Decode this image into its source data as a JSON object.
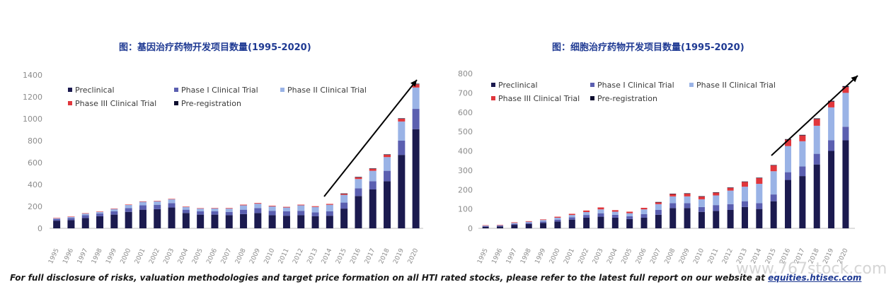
{
  "charts": {
    "left_title": "图：基因治疗药物开发项目数量(1995-2020)",
    "right_title": "图：细胞治疗药物开发项目数量(1995-2020)"
  },
  "footer": {
    "text": "For full disclosure of risks, valuation methodologies and target price formation on all HTI rated stocks, please refer to the latest full report on our website at ",
    "link": "equities.htisec.com"
  },
  "watermark": "www.767stock.com",
  "colors": {
    "preclinical": "#1b1a4f",
    "phase1": "#5b5fb0",
    "phase2": "#9ab3e6",
    "phase3": "#e0363c",
    "prereg": "#0d0d2e",
    "arrow": "#000000"
  },
  "chart_data": [
    {
      "type": "bar",
      "stacked": true,
      "title": "图：基因治疗药物开发项目数量(1995-2020)",
      "categories": [
        "1995",
        "1996",
        "1997",
        "1998",
        "1999",
        "2000",
        "2001",
        "2002",
        "2003",
        "2004",
        "2005",
        "2006",
        "2007",
        "2008",
        "2009",
        "2010",
        "2011",
        "2012",
        "2013",
        "2014",
        "2015",
        "2016",
        "2017",
        "2018",
        "2019",
        "2020"
      ],
      "ylim": [
        0,
        1400
      ],
      "yticks": [
        0,
        200,
        400,
        600,
        800,
        1000,
        1200,
        1400
      ],
      "grid": false,
      "legend_position": "top-left",
      "trend_arrow": true,
      "series": [
        {
          "name": "Preclinical",
          "key": "preclinical",
          "values": [
            70,
            75,
            95,
            110,
            125,
            150,
            170,
            175,
            190,
            140,
            125,
            125,
            120,
            130,
            140,
            120,
            115,
            120,
            110,
            115,
            180,
            295,
            355,
            430,
            670,
            905
          ]
        },
        {
          "name": "Phase I Clinical Trial",
          "key": "phase1",
          "values": [
            15,
            20,
            25,
            25,
            30,
            35,
            40,
            40,
            40,
            30,
            30,
            30,
            30,
            40,
            45,
            40,
            40,
            40,
            35,
            40,
            55,
            70,
            75,
            95,
            130,
            185
          ]
        },
        {
          "name": "Phase II Clinical Trial",
          "key": "phase2",
          "values": [
            8,
            10,
            15,
            15,
            22,
            28,
            32,
            32,
            35,
            25,
            25,
            27,
            30,
            40,
            40,
            40,
            35,
            50,
            50,
            60,
            70,
            85,
            95,
            125,
            175,
            195
          ]
        },
        {
          "name": "Phase III Clinical Trial",
          "key": "phase3",
          "values": [
            2,
            2,
            3,
            3,
            3,
            4,
            4,
            4,
            4,
            4,
            4,
            4,
            5,
            6,
            6,
            6,
            6,
            6,
            7,
            8,
            12,
            17,
            20,
            22,
            25,
            30
          ]
        },
        {
          "name": "Pre-registration",
          "key": "prereg",
          "values": [
            0,
            0,
            0,
            0,
            0,
            0,
            0,
            0,
            0,
            0,
            0,
            0,
            0,
            0,
            0,
            0,
            0,
            0,
            0,
            0,
            1,
            2,
            2,
            3,
            4,
            5
          ]
        }
      ]
    },
    {
      "type": "bar",
      "stacked": true,
      "title": "图：细胞治疗药物开发项目数量(1995-2020)",
      "categories": [
        "1995",
        "1996",
        "1997",
        "1998",
        "1999",
        "2000",
        "2001",
        "2002",
        "2003",
        "2004",
        "2005",
        "2006",
        "2007",
        "2008",
        "2009",
        "2010",
        "2011",
        "2012",
        "2013",
        "2014",
        "2015",
        "2016",
        "2017",
        "2018",
        "2019",
        "2020"
      ],
      "ylim": [
        0,
        800
      ],
      "yticks": [
        0,
        100,
        200,
        300,
        400,
        500,
        600,
        700,
        800
      ],
      "grid": false,
      "legend_position": "top-left",
      "trend_arrow": true,
      "series": [
        {
          "name": "Preclinical",
          "key": "preclinical",
          "values": [
            8,
            10,
            18,
            22,
            28,
            35,
            45,
            55,
            60,
            55,
            48,
            55,
            70,
            105,
            105,
            85,
            90,
            95,
            110,
            100,
            140,
            250,
            270,
            330,
            400,
            455
          ]
        },
        {
          "name": "Phase I Clinical Trial",
          "key": "phase1",
          "values": [
            3,
            3,
            5,
            6,
            7,
            10,
            12,
            14,
            18,
            15,
            14,
            18,
            25,
            25,
            25,
            25,
            30,
            30,
            30,
            30,
            35,
            40,
            50,
            55,
            55,
            70
          ]
        },
        {
          "name": "Phase II Clinical Trial",
          "key": "phase2",
          "values": [
            3,
            3,
            5,
            6,
            8,
            10,
            12,
            15,
            20,
            16,
            16,
            25,
            30,
            35,
            35,
            40,
            50,
            70,
            75,
            100,
            120,
            135,
            130,
            145,
            170,
            175
          ]
        },
        {
          "name": "Phase III Clinical Trial",
          "key": "phase3",
          "values": [
            2,
            2,
            3,
            3,
            3,
            5,
            6,
            8,
            10,
            8,
            8,
            8,
            10,
            13,
            15,
            15,
            15,
            15,
            25,
            30,
            30,
            33,
            30,
            35,
            30,
            30
          ]
        },
        {
          "name": "Pre-registration",
          "key": "prereg",
          "values": [
            0,
            0,
            0,
            0,
            0,
            0,
            0,
            0,
            0,
            0,
            0,
            0,
            1,
            1,
            1,
            1,
            1,
            1,
            2,
            2,
            2,
            3,
            3,
            3,
            4,
            5
          ]
        }
      ]
    }
  ]
}
